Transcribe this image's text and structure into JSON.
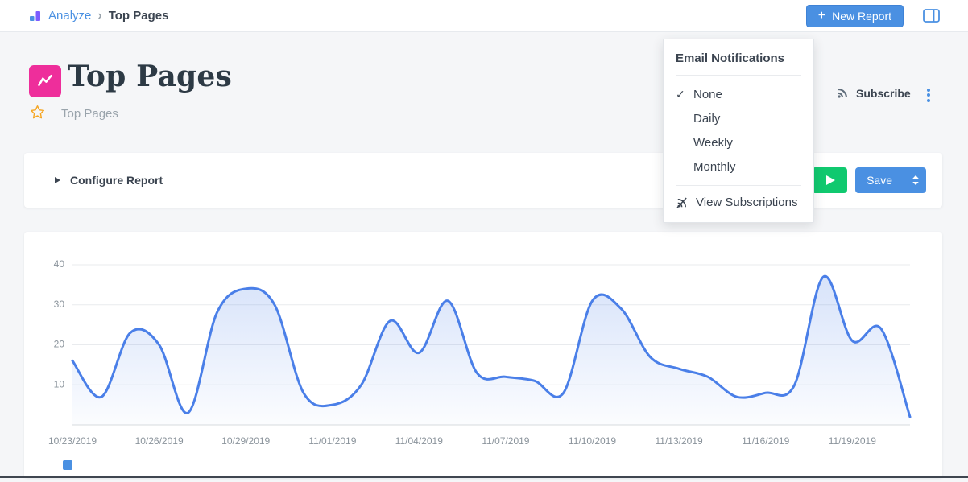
{
  "icons": {
    "plus": "+",
    "chevron_right": "›",
    "check": "✓"
  },
  "colors": {
    "accent_blue": "#4a90e2",
    "run_green": "#10c96f",
    "title_icon_pink": "#ee2e9b",
    "star_orange": "#f5a623",
    "line_blue": "#4a7fe8"
  },
  "topbar": {
    "breadcrumb_app": "Analyze",
    "breadcrumb_page": "Top Pages",
    "new_report_label": "New Report"
  },
  "header": {
    "title": "Top Pages",
    "subtitle": "Top Pages",
    "subscribe_label": "Subscribe"
  },
  "dropdown": {
    "title": "Email Notifications",
    "items": [
      {
        "label": "None",
        "checked": true
      },
      {
        "label": "Daily",
        "checked": false
      },
      {
        "label": "Weekly",
        "checked": false
      },
      {
        "label": "Monthly",
        "checked": false
      }
    ],
    "footer": "View Subscriptions"
  },
  "configure": {
    "label": "Configure Report",
    "save_label": "Save"
  },
  "chart_data": {
    "type": "line",
    "title": "",
    "xlabel": "",
    "ylabel": "",
    "categories": [
      "10/23/2019",
      "10/24/2019",
      "10/25/2019",
      "10/26/2019",
      "10/27/2019",
      "10/28/2019",
      "10/29/2019",
      "10/30/2019",
      "10/31/2019",
      "11/01/2019",
      "11/02/2019",
      "11/03/2019",
      "11/04/2019",
      "11/05/2019",
      "11/06/2019",
      "11/07/2019",
      "11/08/2019",
      "11/09/2019",
      "11/10/2019",
      "11/11/2019",
      "11/12/2019",
      "11/13/2019",
      "11/14/2019",
      "11/15/2019",
      "11/16/2019",
      "11/17/2019",
      "11/18/2019",
      "11/19/2019",
      "11/20/2019",
      "11/21/2019"
    ],
    "series": [
      {
        "name": "",
        "color": "#4a7fe8",
        "values": [
          16,
          7,
          23,
          20,
          3,
          28,
          34,
          30,
          8,
          5,
          10,
          26,
          18,
          31,
          13,
          12,
          11,
          8,
          31,
          29,
          17,
          14,
          12,
          7,
          8,
          10,
          37,
          21,
          24,
          2
        ]
      }
    ],
    "x_tick_every": 3,
    "x_tick_labels": [
      "10/23/2019",
      "10/26/2019",
      "10/29/2019",
      "11/01/2019",
      "11/04/2019",
      "11/07/2019",
      "11/10/2019",
      "11/13/2019",
      "11/16/2019",
      "11/19/2019"
    ],
    "yticks": [
      10,
      20,
      30,
      40
    ],
    "ylim": [
      0,
      40
    ],
    "grid": true,
    "fill": "gradient",
    "legend_position": "bottom-left"
  }
}
